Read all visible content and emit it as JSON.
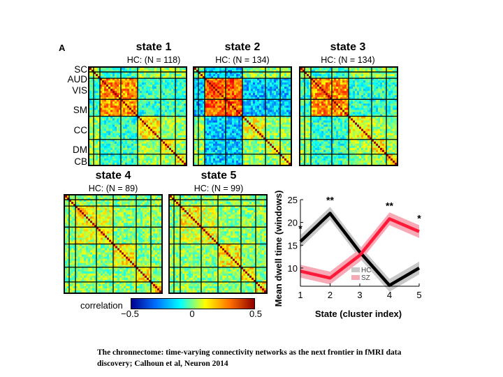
{
  "panel_label": "A",
  "states": [
    {
      "title": "state 1",
      "subtitle": "HC: (N = 118)"
    },
    {
      "title": "state 2",
      "subtitle": "HC: (N = 134)"
    },
    {
      "title": "state 3",
      "subtitle": "HC: (N = 134)"
    },
    {
      "title": "state 4",
      "subtitle": "HC: (N = 89)"
    },
    {
      "title": "state 5",
      "subtitle": "HC: (N = 99)"
    }
  ],
  "networks": [
    "SC",
    "AUD",
    "VIS",
    "SM",
    "CC",
    "DM",
    "CB"
  ],
  "colorbar": {
    "label": "correlation",
    "ticks": [
      "−0.5",
      "0",
      "0.5"
    ],
    "colors": [
      "#00008f",
      "#0070ff",
      "#00ffff",
      "#ffff00",
      "#ff7000",
      "#8f0000"
    ]
  },
  "chart_data": {
    "type": "line",
    "x": [
      1,
      2,
      3,
      4,
      5
    ],
    "xlabel": "State (cluster index)",
    "ylabel": "Mean dwell time (windows)",
    "xlim": [
      1,
      5
    ],
    "ylim": [
      6,
      25
    ],
    "yticks": [
      10,
      15,
      20,
      25
    ],
    "series": [
      {
        "name": "HC",
        "values": [
          15.8,
          22.0,
          13.5,
          6.2,
          10.0
        ],
        "color": "#000000",
        "band_color": "#c8c8c8"
      },
      {
        "name": "SZ",
        "values": [
          9.3,
          7.8,
          12.8,
          20.8,
          18.0
        ],
        "color": "#ff1a3a",
        "band_color": "#f7a9b6"
      }
    ],
    "significance": [
      {
        "x": 1,
        "label": "*"
      },
      {
        "x": 2,
        "label": "**"
      },
      {
        "x": 4,
        "label": "**"
      },
      {
        "x": 5,
        "label": "*"
      }
    ]
  },
  "caption": "The chronnectome: time-varying connectivity networks as the next frontier in fMRI data discovery;  Calhoun et al, Neuron 2014"
}
